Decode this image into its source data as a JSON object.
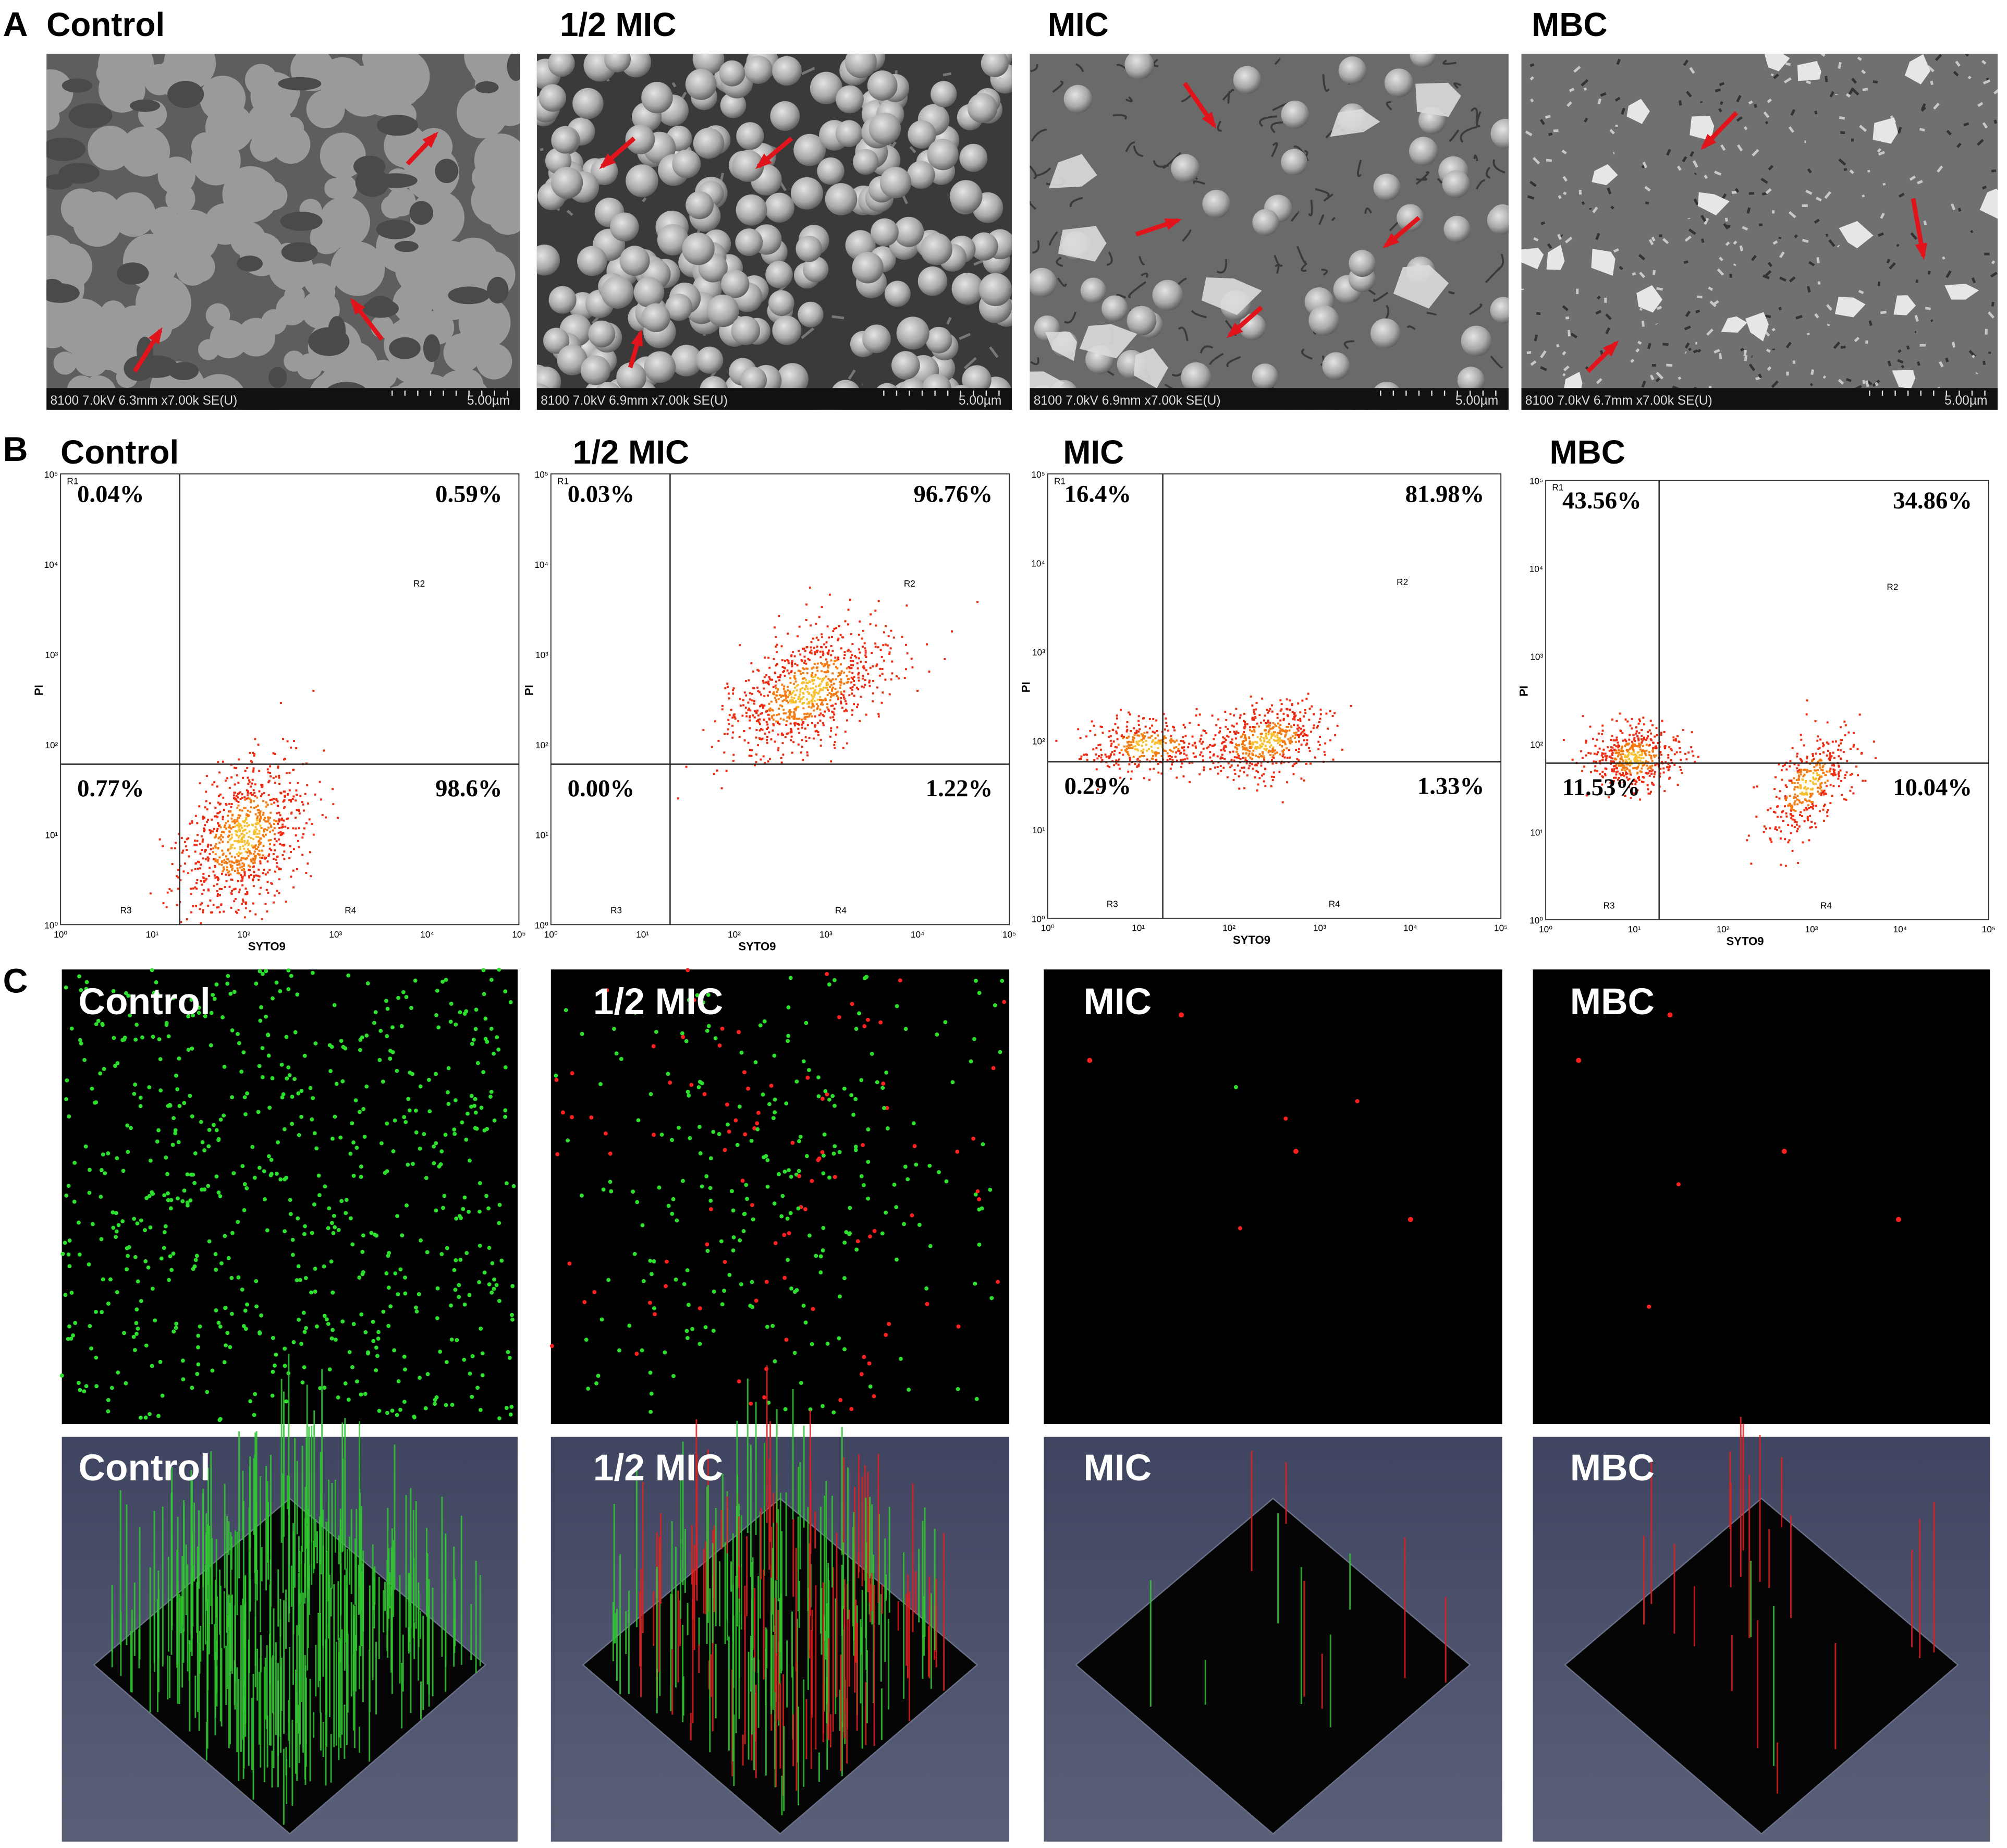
{
  "panel_a": {
    "letter": "A",
    "images": [
      {
        "title": "Control",
        "info": "8100 7.0kV 6.3mm x7.00k SE(U)",
        "scale": "5.00µm"
      },
      {
        "title": "1/2 MIC",
        "info": "8100 7.0kV 6.9mm x7.00k SE(U)",
        "scale": "5.00µm"
      },
      {
        "title": "MIC",
        "info": "8100 7.0kV 6.9mm x7.00k SE(U)",
        "scale": "5.00µm"
      },
      {
        "title": "MBC",
        "info": "8100 7.0kV 6.7mm x7.00k SE(U)",
        "scale": "5.00µm"
      }
    ]
  },
  "panel_b": {
    "letter": "B",
    "x_label": "SYTO9",
    "y_label": "PI",
    "tick_labels": [
      "10⁰",
      "10¹",
      "10²",
      "10³",
      "10⁴",
      "10⁵"
    ],
    "regions": [
      "R1",
      "R2",
      "R3",
      "R4"
    ],
    "plots": [
      {
        "title": "Control",
        "quadrants": {
          "upper_left": "0.04%",
          "upper_right": "0.59%",
          "lower_left": "0.77%",
          "lower_right": "98.6%"
        }
      },
      {
        "title": "1/2 MIC",
        "quadrants": {
          "upper_left": "0.03%",
          "upper_right": "96.76%",
          "lower_left": "0.00%",
          "lower_right": "1.22%"
        }
      },
      {
        "title": "MIC",
        "quadrants": {
          "upper_left": "16.4%",
          "upper_right": "81.98%",
          "lower_left": "0.29%",
          "lower_right": "1.33%"
        }
      },
      {
        "title": "MBC",
        "quadrants": {
          "upper_left": "43.56%",
          "upper_right": "34.86%",
          "lower_left": "11.53%",
          "lower_right": "10.04%"
        }
      }
    ]
  },
  "panel_c": {
    "letter": "C",
    "images": [
      {
        "title": "Control"
      },
      {
        "title": "1/2 MIC"
      },
      {
        "title": "MIC"
      },
      {
        "title": "MBC"
      }
    ]
  }
}
